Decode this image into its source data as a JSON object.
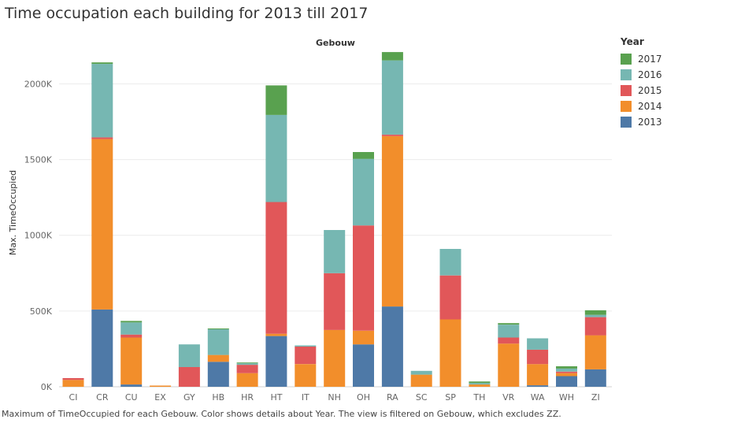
{
  "title": "Time occupation each building for 2013 till 2017",
  "caption": "Maximum of TimeOccupied for each Gebouw.  Color shows details about Year. The view is filtered on Gebouw, which excludes ZZ.",
  "legend": {
    "title": "Year",
    "items": [
      {
        "label": "2017",
        "color": "#59a14f"
      },
      {
        "label": "2016",
        "color": "#76b7b2"
      },
      {
        "label": "2015",
        "color": "#e15759"
      },
      {
        "label": "2014",
        "color": "#f28e2b"
      },
      {
        "label": "2013",
        "color": "#4e79a7"
      }
    ]
  },
  "chart_data": {
    "type": "bar",
    "stacked": true,
    "column_header": "Gebouw",
    "ylabel": "Max. TimeOccupied",
    "ylim": [
      0,
      2200000
    ],
    "yticks": [
      {
        "value": 0,
        "label": "0K"
      },
      {
        "value": 500000,
        "label": "500K"
      },
      {
        "value": 1000000,
        "label": "1000K"
      },
      {
        "value": 1500000,
        "label": "1500K"
      },
      {
        "value": 2000000,
        "label": "2000K"
      }
    ],
    "categories": [
      "CI",
      "CR",
      "CU",
      "EX",
      "GY",
      "HB",
      "HR",
      "HT",
      "IT",
      "NH",
      "OH",
      "RA",
      "SC",
      "SP",
      "TH",
      "VR",
      "WA",
      "WH",
      "ZI"
    ],
    "series": [
      {
        "name": "2013",
        "color": "#4e79a7",
        "values": [
          0,
          510000,
          15000,
          0,
          0,
          165000,
          0,
          335000,
          0,
          0,
          280000,
          530000,
          0,
          0,
          0,
          0,
          10000,
          70000,
          115000
        ]
      },
      {
        "name": "2014",
        "color": "#f28e2b",
        "values": [
          45000,
          1125000,
          310000,
          8000,
          0,
          45000,
          90000,
          15000,
          150000,
          375000,
          90000,
          1125000,
          80000,
          445000,
          15000,
          285000,
          140000,
          20000,
          225000
        ]
      },
      {
        "name": "2015",
        "color": "#e15759",
        "values": [
          12000,
          12000,
          20000,
          0,
          130000,
          0,
          55000,
          870000,
          115000,
          375000,
          695000,
          10000,
          0,
          290000,
          0,
          40000,
          95000,
          10000,
          120000
        ]
      },
      {
        "name": "2016",
        "color": "#76b7b2",
        "values": [
          0,
          485000,
          80000,
          0,
          150000,
          170000,
          10000,
          575000,
          8000,
          285000,
          440000,
          490000,
          25000,
          175000,
          10000,
          85000,
          75000,
          20000,
          15000
        ]
      },
      {
        "name": "2017",
        "color": "#59a14f",
        "values": [
          0,
          10000,
          10000,
          0,
          0,
          5000,
          5000,
          195000,
          0,
          0,
          45000,
          55000,
          0,
          0,
          10000,
          10000,
          0,
          15000,
          30000
        ]
      }
    ]
  }
}
